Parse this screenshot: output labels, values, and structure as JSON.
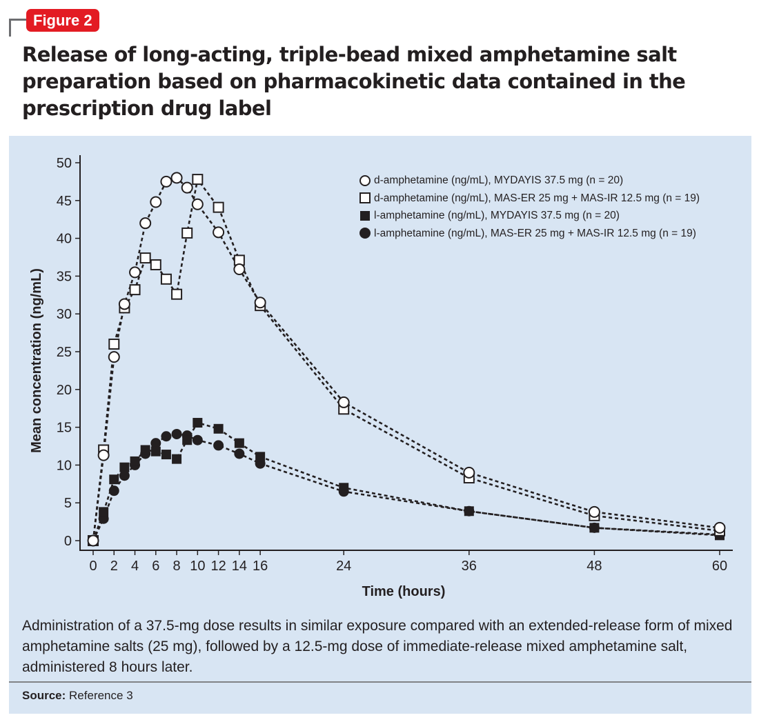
{
  "figure_label": "Figure 2",
  "title": "Release of long-acting, triple-bead mixed amphetamine salt preparation based on pharmacokinetic data contained in the prescription drug label",
  "caption": "Administration of a 37.5-mg dose results in similar exposure compared with an extended-release form of mixed amphetamine salts (25 mg), followed by a 12.5-mg dose of immediate-release mixed amphetamine salt, administered 8 hours later.",
  "source_label": "Source:",
  "source_text": "Reference 3",
  "colors": {
    "badge": "#e31b23",
    "panel": "#d8e5f3",
    "ink": "#231f20"
  },
  "chart_data": {
    "type": "line",
    "title": "",
    "xlabel": "Time (hours)",
    "ylabel": "Mean concentration (ng/mL)",
    "xlim": [
      0,
      60
    ],
    "ylim": [
      0,
      50
    ],
    "xticks": [
      0,
      2,
      4,
      6,
      8,
      10,
      12,
      14,
      16,
      24,
      36,
      48,
      60
    ],
    "yticks": [
      0,
      5,
      10,
      15,
      20,
      25,
      30,
      35,
      40,
      45,
      50
    ],
    "grid": false,
    "legend_position": "top-right",
    "line_style": "dashed",
    "series": [
      {
        "name": "d-amphetamine (ng/mL), MYDAYIS 37.5 mg (n = 20)",
        "marker": "open-circle",
        "x": [
          0,
          1,
          2,
          3,
          4,
          5,
          6,
          7,
          8,
          9,
          10,
          12,
          14,
          16,
          24,
          36,
          48,
          60
        ],
        "y": [
          0,
          11.3,
          24.3,
          31.3,
          35.5,
          42.0,
          44.8,
          47.5,
          48.0,
          46.7,
          44.5,
          40.8,
          35.9,
          31.5,
          18.3,
          9.0,
          3.8,
          1.7
        ]
      },
      {
        "name": "d-amphetamine (ng/mL), MAS-ER 25 mg + MAS-IR 12.5 mg (n = 19)",
        "marker": "open-square",
        "x": [
          0,
          1,
          2,
          3,
          4,
          5,
          6,
          7,
          8,
          9,
          10,
          12,
          14,
          16,
          24,
          36,
          48,
          60
        ],
        "y": [
          0,
          12.0,
          26.0,
          30.8,
          33.2,
          37.4,
          36.5,
          34.6,
          32.6,
          40.7,
          47.8,
          44.1,
          37.1,
          31.1,
          17.4,
          8.3,
          3.3,
          1.3
        ]
      },
      {
        "name": "l-amphetamine (ng/mL), MYDAYIS 37.5 mg (n = 20)",
        "marker": "filled-square",
        "x": [
          0,
          1,
          2,
          3,
          4,
          5,
          6,
          7,
          8,
          9,
          10,
          12,
          14,
          16,
          24,
          36,
          48,
          60
        ],
        "y": [
          0,
          3.8,
          8.1,
          9.7,
          10.5,
          12.0,
          11.8,
          11.4,
          10.8,
          13.3,
          15.6,
          14.8,
          12.9,
          11.1,
          7.0,
          3.9,
          1.7,
          0.7
        ]
      },
      {
        "name": "l-amphetamine (ng/mL), MAS-ER 25 mg + MAS-IR 12.5 mg (n = 19)",
        "marker": "filled-circle",
        "x": [
          0,
          1,
          2,
          3,
          4,
          5,
          6,
          7,
          8,
          9,
          10,
          12,
          14,
          16,
          24,
          36,
          48,
          60
        ],
        "y": [
          0,
          2.9,
          6.6,
          8.6,
          10.0,
          11.5,
          12.9,
          13.8,
          14.1,
          13.9,
          13.3,
          12.6,
          11.5,
          10.2,
          6.5,
          3.9,
          1.7,
          0.8
        ]
      }
    ]
  }
}
